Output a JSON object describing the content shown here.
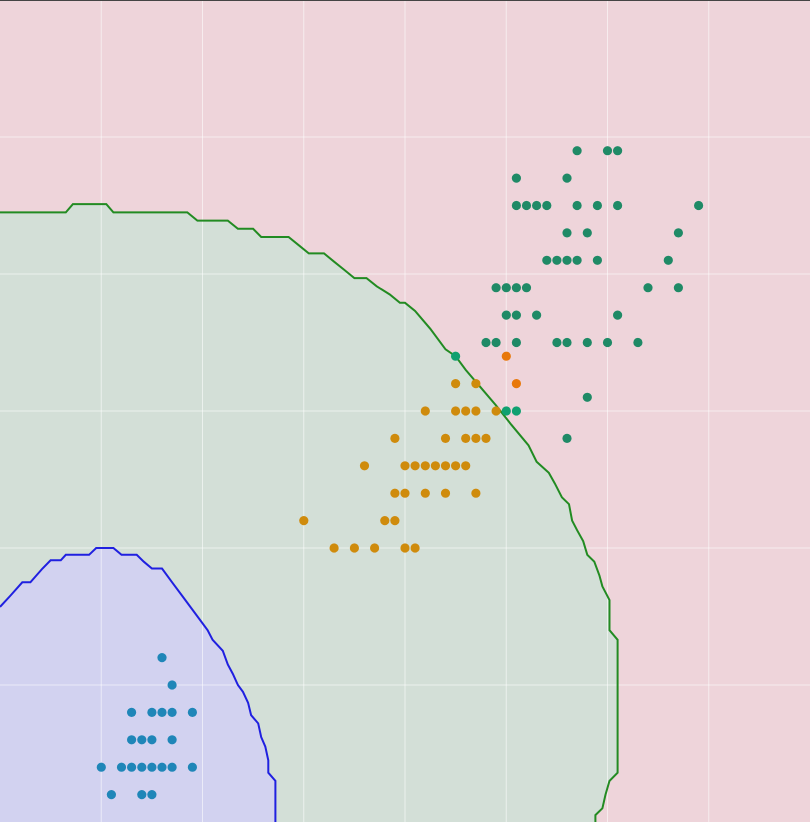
{
  "chart_data": {
    "type": "scatter",
    "title": "",
    "xlabel": "",
    "ylabel": "",
    "xlim": [
      0,
      8
    ],
    "ylim": [
      0,
      6
    ],
    "grid": true,
    "grid_color": "#ffffff",
    "x_gridlines": [
      1,
      2,
      3,
      4,
      5,
      6,
      7
    ],
    "y_gridlines": [
      1,
      2,
      3,
      4,
      5
    ],
    "regions": [
      {
        "name": "",
        "fill": "#eed4da",
        "covers": "background"
      },
      {
        "name": "",
        "fill": "#d3dfd7",
        "stroke": "#228b22",
        "boundary": [
          [
            0.0,
            4.45
          ],
          [
            0.65,
            4.45
          ],
          [
            0.72,
            4.51
          ],
          [
            1.05,
            4.51
          ],
          [
            1.12,
            4.45
          ],
          [
            1.85,
            4.45
          ],
          [
            1.95,
            4.39
          ],
          [
            2.25,
            4.39
          ],
          [
            2.35,
            4.33
          ],
          [
            2.5,
            4.33
          ],
          [
            2.58,
            4.27
          ],
          [
            2.85,
            4.27
          ],
          [
            2.95,
            4.21
          ],
          [
            3.05,
            4.15
          ],
          [
            3.2,
            4.15
          ],
          [
            3.3,
            4.09
          ],
          [
            3.4,
            4.03
          ],
          [
            3.5,
            3.97
          ],
          [
            3.62,
            3.97
          ],
          [
            3.72,
            3.91
          ],
          [
            3.85,
            3.85
          ],
          [
            3.95,
            3.79
          ],
          [
            4.0,
            3.79
          ],
          [
            4.1,
            3.73
          ],
          [
            4.25,
            3.6
          ],
          [
            4.4,
            3.45
          ],
          [
            4.5,
            3.4
          ],
          [
            4.6,
            3.3
          ],
          [
            4.75,
            3.17
          ],
          [
            4.9,
            3.04
          ],
          [
            5.05,
            2.9
          ],
          [
            5.22,
            2.75
          ],
          [
            5.3,
            2.63
          ],
          [
            5.42,
            2.55
          ],
          [
            5.48,
            2.47
          ],
          [
            5.55,
            2.37
          ],
          [
            5.62,
            2.32
          ],
          [
            5.65,
            2.2
          ],
          [
            5.7,
            2.13
          ],
          [
            5.76,
            2.05
          ],
          [
            5.8,
            1.95
          ],
          [
            5.87,
            1.9
          ],
          [
            5.92,
            1.8
          ],
          [
            5.95,
            1.72
          ],
          [
            6.02,
            1.62
          ],
          [
            6.02,
            1.4
          ],
          [
            6.1,
            1.33
          ],
          [
            6.1,
            0.36
          ],
          [
            6.02,
            0.3
          ],
          [
            5.98,
            0.2
          ],
          [
            5.95,
            0.1
          ],
          [
            5.88,
            0.05
          ],
          [
            5.88,
            0.0
          ],
          [
            0.0,
            0.0
          ]
        ]
      },
      {
        "name": "",
        "fill": "#d2d2f0",
        "stroke": "#2020e0",
        "boundary": [
          [
            0.0,
            1.57
          ],
          [
            0.1,
            1.65
          ],
          [
            0.22,
            1.75
          ],
          [
            0.3,
            1.75
          ],
          [
            0.42,
            1.85
          ],
          [
            0.5,
            1.91
          ],
          [
            0.6,
            1.91
          ],
          [
            0.65,
            1.95
          ],
          [
            0.88,
            1.95
          ],
          [
            0.95,
            2.0
          ],
          [
            1.12,
            2.0
          ],
          [
            1.2,
            1.95
          ],
          [
            1.35,
            1.95
          ],
          [
            1.42,
            1.9
          ],
          [
            1.5,
            1.85
          ],
          [
            1.6,
            1.85
          ],
          [
            1.7,
            1.75
          ],
          [
            1.8,
            1.65
          ],
          [
            1.9,
            1.55
          ],
          [
            2.05,
            1.4
          ],
          [
            2.1,
            1.33
          ],
          [
            2.2,
            1.25
          ],
          [
            2.25,
            1.15
          ],
          [
            2.3,
            1.08
          ],
          [
            2.35,
            1.0
          ],
          [
            2.4,
            0.95
          ],
          [
            2.45,
            0.87
          ],
          [
            2.48,
            0.78
          ],
          [
            2.55,
            0.72
          ],
          [
            2.58,
            0.62
          ],
          [
            2.62,
            0.55
          ],
          [
            2.65,
            0.45
          ],
          [
            2.65,
            0.36
          ],
          [
            2.72,
            0.3
          ],
          [
            2.72,
            0.0
          ],
          [
            0.0,
            0.0
          ]
        ]
      }
    ],
    "series": [
      {
        "name": "",
        "color": "#1f86b8",
        "points": [
          [
            1.6,
            1.2
          ],
          [
            1.7,
            1.0
          ],
          [
            1.3,
            0.8
          ],
          [
            1.5,
            0.8
          ],
          [
            1.6,
            0.8
          ],
          [
            1.7,
            0.8
          ],
          [
            1.9,
            0.8
          ],
          [
            1.3,
            0.6
          ],
          [
            1.4,
            0.6
          ],
          [
            1.5,
            0.6
          ],
          [
            1.7,
            0.6
          ],
          [
            1.0,
            0.4
          ],
          [
            1.2,
            0.4
          ],
          [
            1.3,
            0.4
          ],
          [
            1.4,
            0.4
          ],
          [
            1.5,
            0.4
          ],
          [
            1.6,
            0.4
          ],
          [
            1.7,
            0.4
          ],
          [
            1.9,
            0.4
          ],
          [
            1.1,
            0.2
          ],
          [
            1.4,
            0.2
          ],
          [
            1.5,
            0.2
          ]
        ]
      },
      {
        "name": "",
        "color": "#cf8b0c",
        "points": [
          [
            4.5,
            3.2
          ],
          [
            4.7,
            3.2
          ],
          [
            4.2,
            3.0
          ],
          [
            4.5,
            3.0
          ],
          [
            4.6,
            3.0
          ],
          [
            4.7,
            3.0
          ],
          [
            4.9,
            3.0
          ],
          [
            3.9,
            2.8
          ],
          [
            4.4,
            2.8
          ],
          [
            4.6,
            2.8
          ],
          [
            4.7,
            2.8
          ],
          [
            4.8,
            2.8
          ],
          [
            3.6,
            2.6
          ],
          [
            4.0,
            2.6
          ],
          [
            4.1,
            2.6
          ],
          [
            4.2,
            2.6
          ],
          [
            4.3,
            2.6
          ],
          [
            4.4,
            2.6
          ],
          [
            4.5,
            2.6
          ],
          [
            4.6,
            2.6
          ],
          [
            3.9,
            2.4
          ],
          [
            4.0,
            2.4
          ],
          [
            4.2,
            2.4
          ],
          [
            4.4,
            2.4
          ],
          [
            4.7,
            2.4
          ],
          [
            3.0,
            2.2
          ],
          [
            3.8,
            2.2
          ],
          [
            3.9,
            2.2
          ],
          [
            3.3,
            2.0
          ],
          [
            3.5,
            2.0
          ],
          [
            3.7,
            2.0
          ],
          [
            4.0,
            2.0
          ],
          [
            4.1,
            2.0
          ]
        ]
      },
      {
        "name": "",
        "color": "#e8780a",
        "points": [
          [
            5.0,
            3.4
          ],
          [
            5.1,
            3.2
          ]
        ]
      },
      {
        "name": "",
        "color": "#1f8a66",
        "points": [
          [
            5.7,
            4.9
          ],
          [
            6.0,
            4.9
          ],
          [
            6.1,
            4.9
          ],
          [
            5.1,
            4.7
          ],
          [
            5.6,
            4.7
          ],
          [
            5.1,
            4.5
          ],
          [
            5.2,
            4.5
          ],
          [
            5.3,
            4.5
          ],
          [
            5.4,
            4.5
          ],
          [
            5.7,
            4.5
          ],
          [
            5.9,
            4.5
          ],
          [
            6.1,
            4.5
          ],
          [
            6.9,
            4.5
          ],
          [
            5.6,
            4.3
          ],
          [
            5.8,
            4.3
          ],
          [
            6.7,
            4.3
          ],
          [
            5.4,
            4.1
          ],
          [
            5.5,
            4.1
          ],
          [
            5.6,
            4.1
          ],
          [
            5.7,
            4.1
          ],
          [
            5.9,
            4.1
          ],
          [
            6.6,
            4.1
          ],
          [
            4.9,
            3.9
          ],
          [
            5.0,
            3.9
          ],
          [
            5.1,
            3.9
          ],
          [
            5.2,
            3.9
          ],
          [
            6.4,
            3.9
          ],
          [
            6.7,
            3.9
          ],
          [
            5.0,
            3.7
          ],
          [
            5.1,
            3.7
          ],
          [
            5.3,
            3.7
          ],
          [
            6.1,
            3.7
          ],
          [
            4.8,
            3.5
          ],
          [
            4.9,
            3.5
          ],
          [
            5.1,
            3.5
          ],
          [
            5.5,
            3.5
          ],
          [
            5.6,
            3.5
          ],
          [
            5.8,
            3.5
          ],
          [
            6.0,
            3.5
          ],
          [
            6.3,
            3.5
          ],
          [
            5.8,
            3.1
          ],
          [
            5.6,
            2.8
          ]
        ]
      },
      {
        "name": "",
        "color": "#10a070",
        "points": [
          [
            4.5,
            3.4
          ],
          [
            5.0,
            3.0
          ],
          [
            5.1,
            3.0
          ]
        ]
      }
    ]
  }
}
